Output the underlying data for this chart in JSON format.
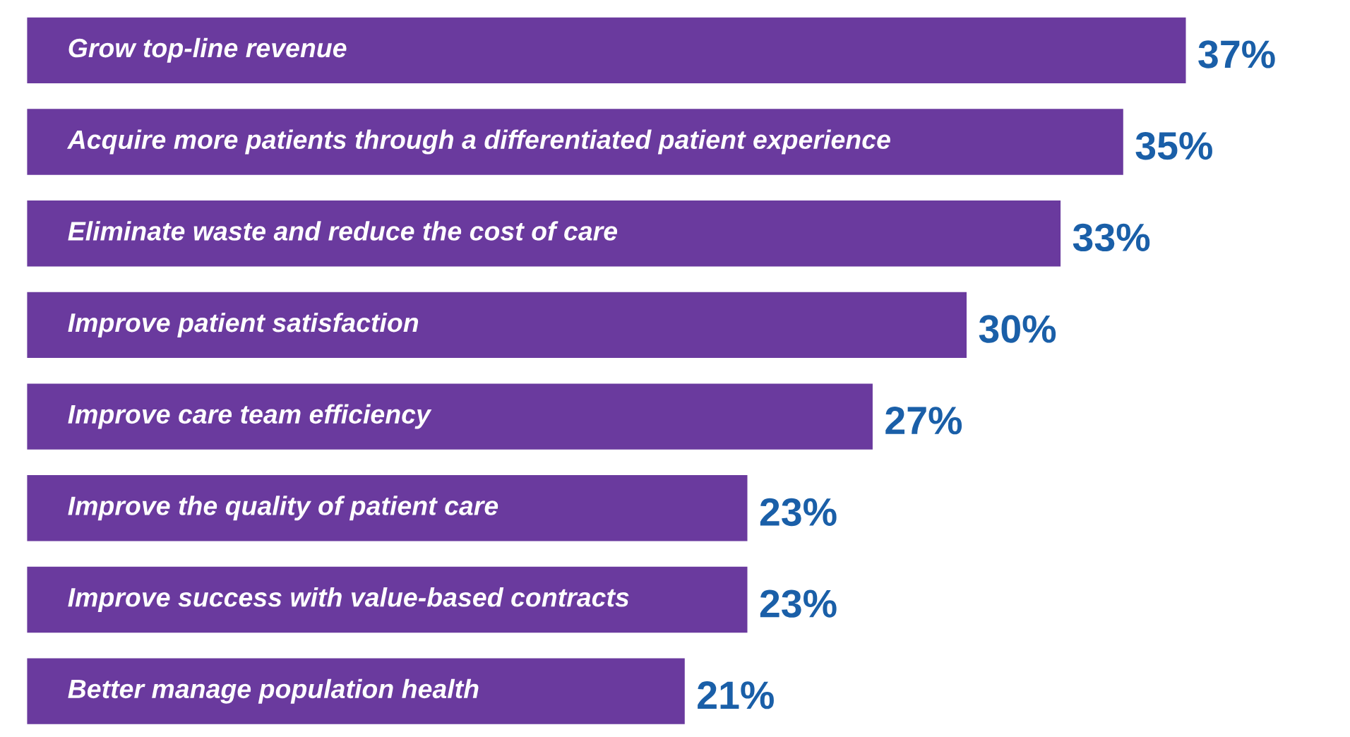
{
  "chart_data": {
    "type": "bar",
    "orientation": "horizontal",
    "categories": [
      "Grow top-line revenue",
      "Acquire more patients through a differentiated patient experience",
      "Eliminate waste and reduce the cost of care",
      "Improve patient satisfaction",
      "Improve care team efficiency",
      "Improve the quality of patient care",
      "Improve success with value-based contracts",
      "Better manage population health"
    ],
    "values": [
      37,
      35,
      33,
      30,
      27,
      23,
      23,
      21
    ],
    "value_labels": [
      "37%",
      "35%",
      "33%",
      "30%",
      "27%",
      "23%",
      "23%",
      "21%"
    ],
    "color": "#6a3a9e"
  }
}
